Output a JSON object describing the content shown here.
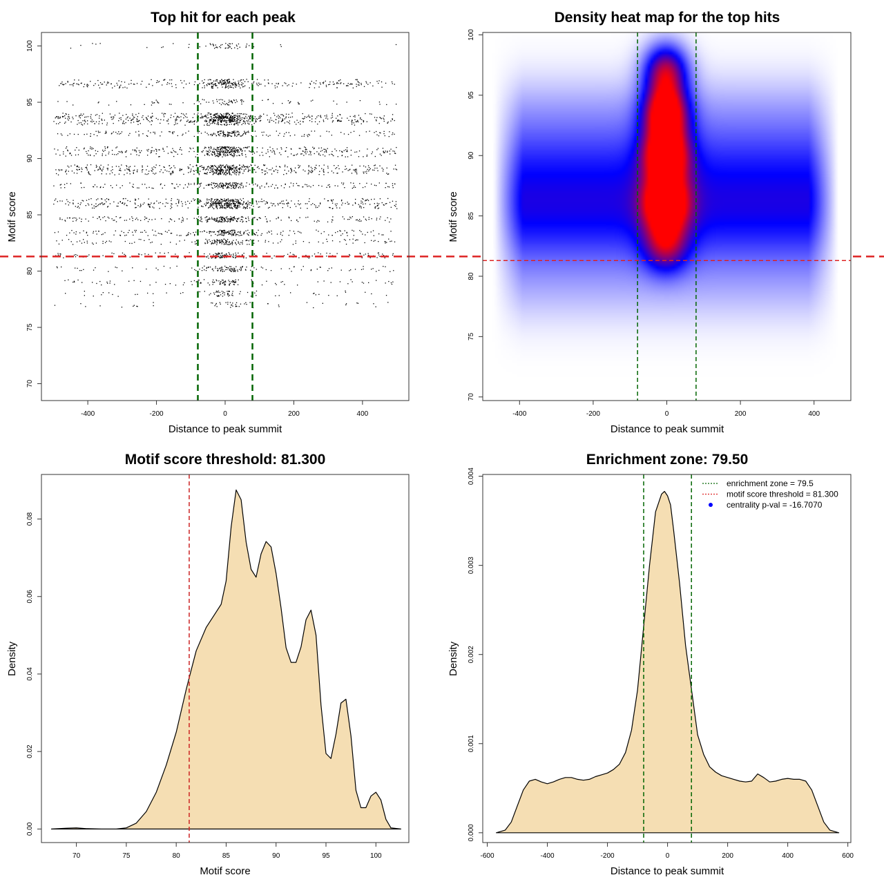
{
  "chart_data": [
    {
      "type": "scatter",
      "title": "Top hit for each peak",
      "xlabel": "Distance to peak summit",
      "ylabel": "Motif score",
      "xlim": [
        -535,
        535
      ],
      "ylim": [
        68.5,
        101.2
      ],
      "xticks": [
        -400,
        -200,
        0,
        200,
        400
      ],
      "yticks": [
        70,
        75,
        80,
        85,
        90,
        95,
        100
      ],
      "xtick_labels": [
        "-400",
        "-200",
        "0",
        "200",
        "400"
      ],
      "ytick_labels": [
        "70",
        "75",
        "80",
        "85",
        "90",
        "95",
        "100"
      ],
      "vlines": [
        -79.5,
        79.5
      ],
      "hline": 81.3,
      "vline_color": "#006400",
      "hline_color": "#dd2222",
      "point_color": "#000000",
      "grid": false,
      "score_levels": [
        {
          "y": 100,
          "weight": 0.3
        },
        {
          "y": 96.8,
          "weight": 0.6
        },
        {
          "y": 96.5,
          "weight": 0.6
        },
        {
          "y": 95.0,
          "weight": 0.3
        },
        {
          "y": 93.8,
          "weight": 0.9
        },
        {
          "y": 93.5,
          "weight": 0.9
        },
        {
          "y": 93.2,
          "weight": 0.7
        },
        {
          "y": 92.2,
          "weight": 0.7
        },
        {
          "y": 90.8,
          "weight": 0.9
        },
        {
          "y": 90.4,
          "weight": 0.8
        },
        {
          "y": 89.2,
          "weight": 1.0
        },
        {
          "y": 88.8,
          "weight": 1.0
        },
        {
          "y": 87.6,
          "weight": 0.8
        },
        {
          "y": 86.2,
          "weight": 1.0
        },
        {
          "y": 85.8,
          "weight": 1.0
        },
        {
          "y": 84.6,
          "weight": 0.9
        },
        {
          "y": 83.4,
          "weight": 0.8
        },
        {
          "y": 82.6,
          "weight": 0.7
        },
        {
          "y": 81.4,
          "weight": 0.6
        },
        {
          "y": 80.2,
          "weight": 0.5
        },
        {
          "y": 79.0,
          "weight": 0.4
        },
        {
          "y": 78.0,
          "weight": 0.3
        },
        {
          "y": 77.0,
          "weight": 0.2
        }
      ],
      "n_points": 4600
    },
    {
      "type": "heatmap",
      "title": "Density heat map for the top hits",
      "xlabel": "Distance to peak summit",
      "ylabel": "Motif score",
      "xlim": [
        -500,
        500
      ],
      "ylim": [
        69.7,
        100.2
      ],
      "xticks": [
        -400,
        -200,
        0,
        200,
        400
      ],
      "yticks": [
        70,
        75,
        80,
        85,
        90,
        95,
        100
      ],
      "xtick_labels": [
        "-400",
        "-200",
        "0",
        "200",
        "400"
      ],
      "ytick_labels": [
        "70",
        "75",
        "80",
        "85",
        "90",
        "95",
        "100"
      ],
      "vlines": [
        -79.5,
        79.5
      ],
      "hline": 81.3,
      "colors": [
        "#ffffff",
        "#0000ff",
        "#ff0000"
      ],
      "hotspots": [
        {
          "x": 0,
          "y": 97.0,
          "intensity": 0.78
        },
        {
          "x": 0,
          "y": 93.5,
          "intensity": 1.0
        },
        {
          "x": 0,
          "y": 90.0,
          "intensity": 1.0
        },
        {
          "x": 0,
          "y": 86.0,
          "intensity": 0.95
        },
        {
          "x": 0,
          "y": 82.5,
          "intensity": 0.55
        }
      ],
      "background_bands": [
        {
          "y": 86.0,
          "intensity": 0.35
        },
        {
          "y": 89.5,
          "intensity": 0.28
        },
        {
          "y": 93.5,
          "intensity": 0.15
        },
        {
          "y": 83.0,
          "intensity": 0.22
        },
        {
          "y": 79.0,
          "intensity": 0.12
        }
      ]
    },
    {
      "type": "area",
      "title": "Motif score threshold: 81.300",
      "xlabel": "Motif score",
      "ylabel": "Density",
      "xlim": [
        66.5,
        103.3
      ],
      "ylim": [
        -0.0035,
        0.0915
      ],
      "xticks": [
        70,
        75,
        80,
        85,
        90,
        95,
        100
      ],
      "yticks": [
        0.0,
        0.02,
        0.04,
        0.06,
        0.08
      ],
      "xtick_labels": [
        "70",
        "75",
        "80",
        "85",
        "90",
        "95",
        "100"
      ],
      "ytick_labels": [
        "0.00",
        "0.02",
        "0.04",
        "0.06",
        "0.08"
      ],
      "vline": 81.3,
      "vline_color": "#cc2222",
      "fill": "#f5deb3",
      "x": [
        67.5,
        69,
        70,
        71,
        72.5,
        74,
        75,
        76,
        77,
        78,
        79,
        80,
        81,
        81.5,
        82,
        83,
        84,
        84.5,
        85,
        85.5,
        86,
        86.5,
        87,
        87.5,
        88,
        88.5,
        89,
        89.5,
        90,
        90.5,
        91,
        91.5,
        92,
        92.5,
        93,
        93.5,
        94,
        94.5,
        95,
        95.5,
        96,
        96.5,
        97,
        97.5,
        98,
        98.5,
        99,
        99.5,
        100,
        100.5,
        101,
        101.5,
        102.5
      ],
      "y": [
        0.0,
        0.0002,
        0.0003,
        0.0001,
        0.0,
        0.0,
        0.0003,
        0.0015,
        0.0045,
        0.0095,
        0.0165,
        0.025,
        0.036,
        0.041,
        0.046,
        0.052,
        0.056,
        0.058,
        0.064,
        0.078,
        0.0875,
        0.085,
        0.074,
        0.067,
        0.065,
        0.071,
        0.0742,
        0.0728,
        0.066,
        0.057,
        0.0468,
        0.043,
        0.043,
        0.047,
        0.054,
        0.0565,
        0.05,
        0.032,
        0.0195,
        0.0182,
        0.0245,
        0.0325,
        0.0335,
        0.024,
        0.01,
        0.0055,
        0.0055,
        0.0085,
        0.0095,
        0.0075,
        0.0025,
        0.0003,
        0.0
      ]
    },
    {
      "type": "area",
      "title": "Enrichment zone: 79.50",
      "xlabel": "Distance to peak summit",
      "ylabel": "Density",
      "xlim": [
        -615,
        610
      ],
      "ylim": [
        -0.00011,
        0.00402
      ],
      "xticks": [
        -600,
        -400,
        -200,
        0,
        200,
        400,
        600
      ],
      "yticks": [
        0.0,
        0.001,
        0.002,
        0.003,
        0.004
      ],
      "xtick_labels": [
        "-600",
        "-400",
        "-200",
        "0",
        "200",
        "400",
        "600"
      ],
      "ytick_labels": [
        "0.000",
        "0.001",
        "0.002",
        "0.003",
        "0.004"
      ],
      "vlines": [
        -79.5,
        79.5
      ],
      "vline_color": "#006400",
      "fill": "#f5deb3",
      "x": [
        -570,
        -540,
        -520,
        -500,
        -480,
        -460,
        -440,
        -420,
        -400,
        -380,
        -360,
        -340,
        -320,
        -300,
        -280,
        -260,
        -240,
        -220,
        -200,
        -180,
        -160,
        -140,
        -120,
        -100,
        -80,
        -60,
        -40,
        -20,
        -10,
        0,
        10,
        20,
        40,
        60,
        80,
        100,
        120,
        140,
        160,
        180,
        200,
        220,
        240,
        260,
        280,
        300,
        320,
        340,
        360,
        380,
        400,
        420,
        440,
        460,
        480,
        500,
        520,
        540,
        570
      ],
      "y": [
        0.0,
        3e-05,
        0.00012,
        0.0003,
        0.00048,
        0.00058,
        0.0006,
        0.00057,
        0.00055,
        0.00057,
        0.0006,
        0.00062,
        0.00062,
        0.0006,
        0.00059,
        0.0006,
        0.00063,
        0.00065,
        0.00067,
        0.00071,
        0.00077,
        0.0009,
        0.00115,
        0.0016,
        0.0023,
        0.003,
        0.0036,
        0.0038,
        0.00383,
        0.00378,
        0.00368,
        0.0034,
        0.0028,
        0.0021,
        0.0016,
        0.0011,
        0.00088,
        0.00074,
        0.00068,
        0.00064,
        0.00062,
        0.0006,
        0.00058,
        0.00057,
        0.00058,
        0.00066,
        0.00062,
        0.00057,
        0.00058,
        0.0006,
        0.00061,
        0.0006,
        0.0006,
        0.00058,
        0.00048,
        0.0003,
        0.00012,
        3e-05,
        0.0
      ],
      "legend": {
        "position": "top-right",
        "entries": [
          {
            "label": "enrichment zone = 79.5",
            "color": "#006400",
            "style": "dotted-line"
          },
          {
            "label": "motif score threshold = 81.300",
            "color": "#dd2222",
            "style": "dotted-line"
          },
          {
            "label": "centrality p-val = -16.7070",
            "color": "#0000ff",
            "style": "point"
          }
        ]
      }
    }
  ]
}
